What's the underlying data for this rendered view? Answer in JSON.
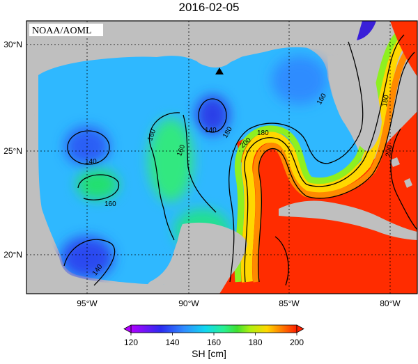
{
  "title": "2016-02-05",
  "watermark": "NOAA/AOML",
  "colors": {
    "land": "#bfbfbf",
    "stops": [
      "#b000ff",
      "#2b2bf0",
      "#2f8cff",
      "#10d8f0",
      "#28f090",
      "#40e030",
      "#b0f010",
      "#ffd700",
      "#ff7b00",
      "#ff2000"
    ]
  },
  "lat_labels": [
    "30°N",
    "25°N",
    "20°N"
  ],
  "lon_labels": [
    "95°W",
    "90°W",
    "85°W",
    "80°W"
  ],
  "contour_labels": [
    "140",
    "140",
    "140",
    "160",
    "160",
    "160",
    "160",
    "180",
    "180",
    "180",
    "200",
    "200"
  ],
  "colorbar": {
    "ticks": [
      "120",
      "140",
      "160",
      "180",
      "200"
    ],
    "label": "SH [cm]"
  }
}
